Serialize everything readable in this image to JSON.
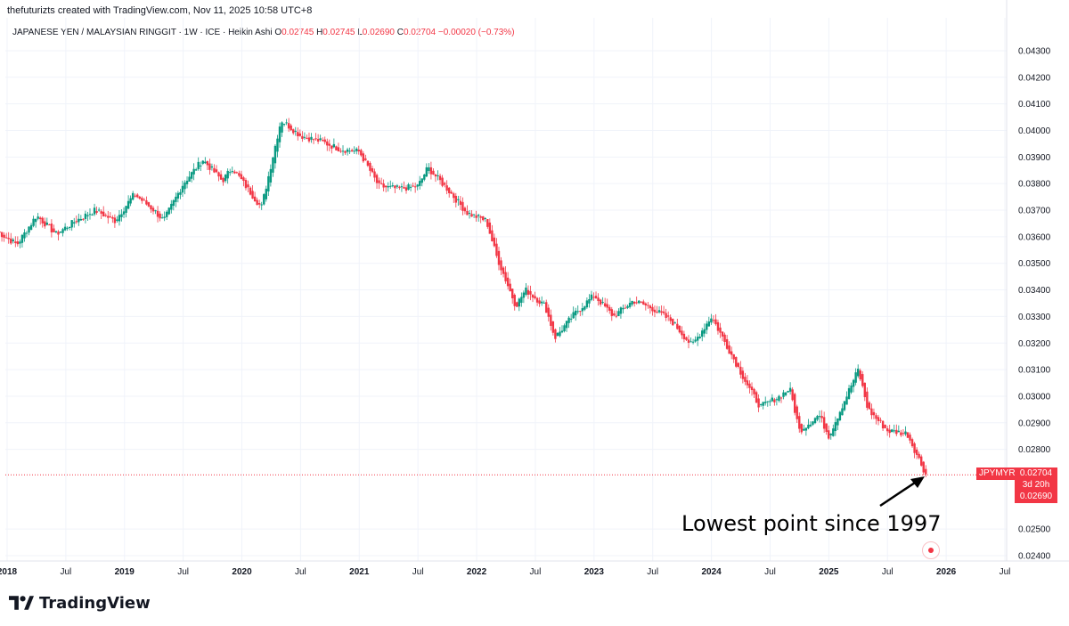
{
  "header": {
    "credit": "thefuturizts created with TradingView.com, Nov 11, 2025 10:58 UTC+8"
  },
  "legend": {
    "symbol_desc": "JAPANESE YEN / MALAYSIAN RINGGIT · 1W · ICE · Heikin Ashi",
    "o_key": "O",
    "o_val": "0.02745",
    "h_key": "H",
    "h_val": "0.02745",
    "l_key": "L",
    "l_val": "0.02690",
    "c_key": "C",
    "c_val": "0.02704",
    "change": "−0.00020 (−0.73%)"
  },
  "price_tag": {
    "symbol": "JPYMYR",
    "last": "0.02704",
    "countdown": "3d 20h",
    "low": "0.02690"
  },
  "annotation": {
    "text": "Lowest point since 1997"
  },
  "footer": {
    "brand": "TradingView"
  },
  "colors": {
    "up": "#089981",
    "down": "#f23645",
    "grid": "#f0f3fa",
    "axis_text": "#131722"
  },
  "chart_data": {
    "type": "candlestick",
    "title": "",
    "xlabel": "",
    "ylabel": "",
    "ylim": [
      0.0238,
      0.0434
    ],
    "grid": true,
    "y_ticks": [
      "0.04300",
      "0.04200",
      "0.04100",
      "0.04000",
      "0.03900",
      "0.03800",
      "0.03700",
      "0.03600",
      "0.03500",
      "0.03400",
      "0.03300",
      "0.03200",
      "0.03100",
      "0.03000",
      "0.02900",
      "0.02800",
      "0.02500",
      "0.02400"
    ],
    "x_ticks": [
      "2018",
      "Jul",
      "2019",
      "Jul",
      "2020",
      "Jul",
      "2021",
      "Jul",
      "2022",
      "Jul",
      "2023",
      "Jul",
      "2024",
      "Jul",
      "2025",
      "Jul",
      "2026",
      "Jul"
    ],
    "x_range": [
      "2018-01",
      "2026-07"
    ],
    "series": [
      {
        "points": [
          [
            "2017-12",
            0.0362
          ],
          [
            "2018-02",
            0.0357
          ],
          [
            "2018-04",
            0.0368
          ],
          [
            "2018-06",
            0.0361
          ],
          [
            "2018-08",
            0.0366
          ],
          [
            "2018-10",
            0.037
          ],
          [
            "2018-12",
            0.0366
          ],
          [
            "2019-02",
            0.0376
          ],
          [
            "2019-04",
            0.037
          ],
          [
            "2019-05",
            0.0366
          ],
          [
            "2019-07",
            0.038
          ],
          [
            "2019-09",
            0.0389
          ],
          [
            "2019-11",
            0.0381
          ],
          [
            "2019-12",
            0.0386
          ],
          [
            "2020-03",
            0.0371
          ],
          [
            "2020-05",
            0.0404
          ],
          [
            "2020-07",
            0.0398
          ],
          [
            "2020-09",
            0.0396
          ],
          [
            "2020-11",
            0.0393
          ],
          [
            "2021-01",
            0.0392
          ],
          [
            "2021-03",
            0.0379
          ],
          [
            "2021-05",
            0.0378
          ],
          [
            "2021-07",
            0.0379
          ],
          [
            "2021-08",
            0.0386
          ],
          [
            "2021-10",
            0.0378
          ],
          [
            "2021-12",
            0.0369
          ],
          [
            "2022-02",
            0.0366
          ],
          [
            "2022-03",
            0.0353
          ],
          [
            "2022-05",
            0.0334
          ],
          [
            "2022-06",
            0.034
          ],
          [
            "2022-08",
            0.0334
          ],
          [
            "2022-09",
            0.0322
          ],
          [
            "2022-11",
            0.0331
          ],
          [
            "2023-01",
            0.0338
          ],
          [
            "2023-03",
            0.033
          ],
          [
            "2023-05",
            0.0336
          ],
          [
            "2023-07",
            0.0333
          ],
          [
            "2023-09",
            0.0328
          ],
          [
            "2023-11",
            0.0319
          ],
          [
            "2024-01",
            0.033
          ],
          [
            "2024-03",
            0.0316
          ],
          [
            "2024-05",
            0.0302
          ],
          [
            "2024-06",
            0.0296
          ],
          [
            "2024-08",
            0.03
          ],
          [
            "2024-09",
            0.0303
          ],
          [
            "2024-10",
            0.0287
          ],
          [
            "2024-12",
            0.0293
          ],
          [
            "2025-01",
            0.0285
          ],
          [
            "2025-04",
            0.031
          ],
          [
            "2025-05",
            0.0295
          ],
          [
            "2025-07",
            0.0287
          ],
          [
            "2025-09",
            0.0286
          ],
          [
            "2025-10",
            0.0278
          ],
          [
            "2025-11",
            0.027
          ]
        ]
      }
    ],
    "last_value": 0.02704,
    "annotation": {
      "text": "Lowest point since 1997",
      "points_to": [
        "2025-11",
        0.027
      ]
    }
  }
}
